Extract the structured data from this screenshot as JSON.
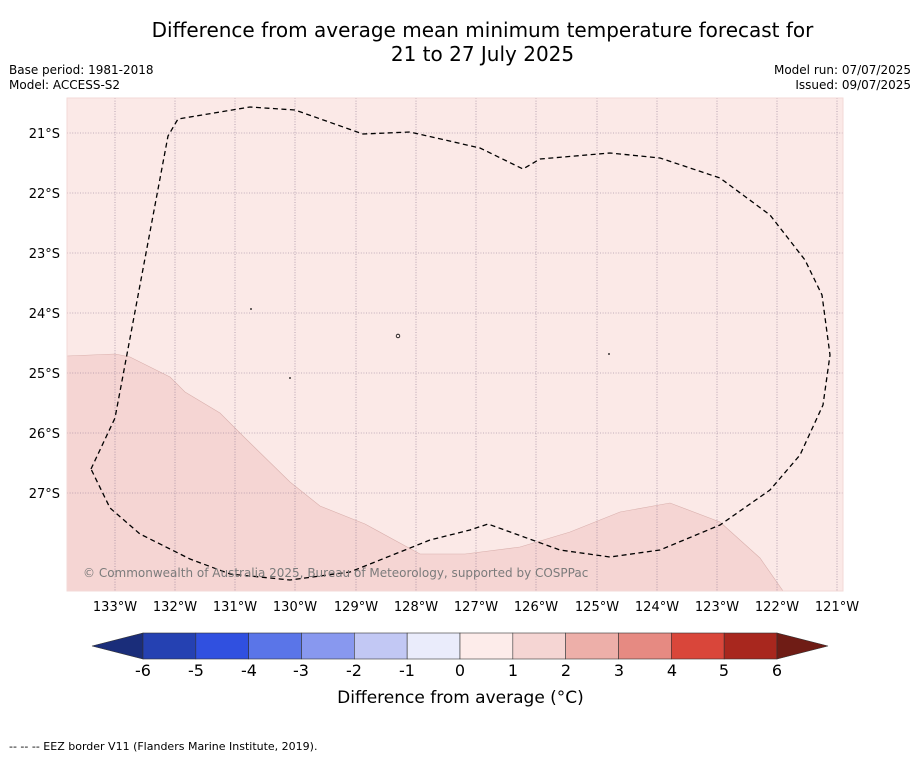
{
  "title": {
    "line1": "Difference from average mean minimum temperature forecast for",
    "line2": "21 to 27 July 2025"
  },
  "meta_left": {
    "base_period": "Base period: 1981-2018",
    "model": "Model: ACCESS-S2"
  },
  "meta_right": {
    "model_run": "Model run: 07/07/2025",
    "issued": "Issued: 09/07/2025"
  },
  "map": {
    "longitude_labels": [
      "133°W",
      "132°W",
      "131°W",
      "130°W",
      "129°W",
      "128°W",
      "127°W",
      "126°W",
      "125°W",
      "124°W",
      "123°W",
      "122°W",
      "121°W"
    ],
    "latitude_labels": [
      "21°S",
      "22°S",
      "23°S",
      "24°S",
      "25°S",
      "26°S",
      "27°S"
    ],
    "copyright": "© Commonwealth of Australia 2025, Bureau of Meteorology, supported by COSPPac",
    "background_color": "#fbe9e7",
    "warm_area_color": "#f5d5d3",
    "boundary": "EEZ border (dashed)"
  },
  "colorbar": {
    "ticks": [
      "-6",
      "-5",
      "-4",
      "-3",
      "-2",
      "-1",
      "0",
      "1",
      "2",
      "3",
      "4",
      "5",
      "6"
    ],
    "colors": [
      "#2541b2",
      "#3050e0",
      "#5a75e8",
      "#8898ef",
      "#c2c8f4",
      "#eaecfb",
      "#fdecea",
      "#f5d5d3",
      "#edafa9",
      "#e68a82",
      "#d9463a",
      "#a8271e"
    ],
    "extend_low_color": "#1a2d7a",
    "extend_high_color": "#6f1c15",
    "label": "Difference from average (°C)"
  },
  "footnote": "--  --  -- EEZ border V11 (Flanders Marine Institute, 2019)."
}
